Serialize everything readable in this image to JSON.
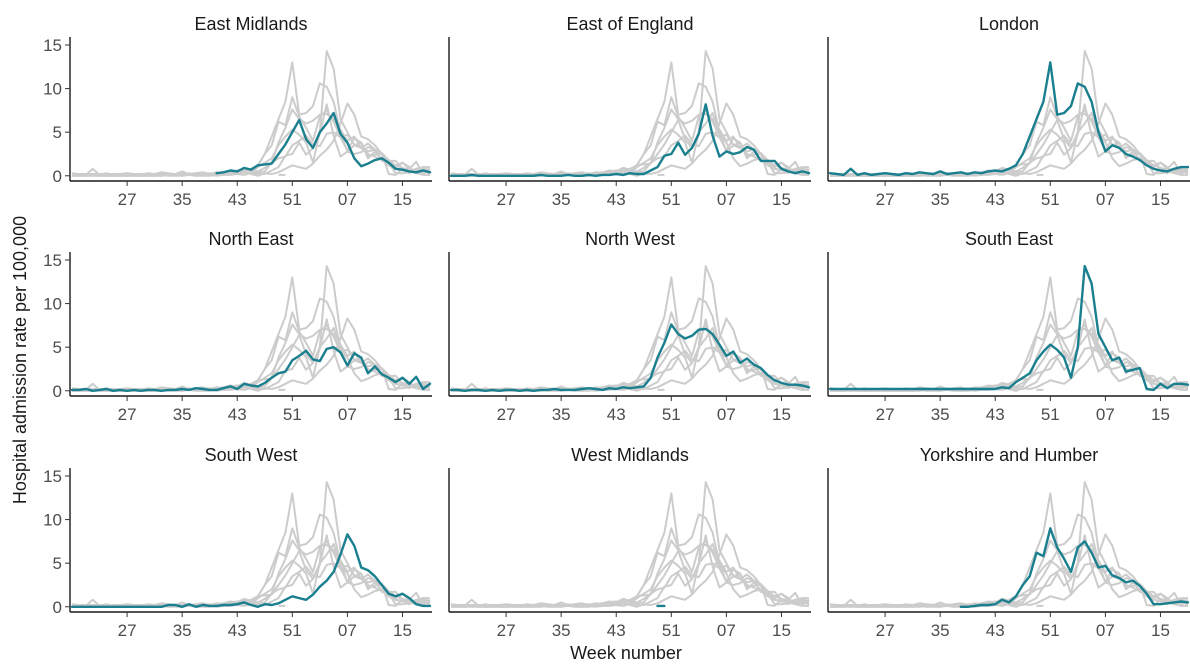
{
  "chart_data": {
    "type": "line",
    "facet_layout": "3x3 small multiples",
    "xlabel": "Week number",
    "ylabel": "Hospital admission rate per 100,000",
    "x": [
      "19",
      "20",
      "21",
      "22",
      "23",
      "24",
      "25",
      "26",
      "27",
      "28",
      "29",
      "30",
      "31",
      "32",
      "33",
      "34",
      "35",
      "36",
      "37",
      "38",
      "39",
      "40",
      "41",
      "42",
      "43",
      "44",
      "45",
      "46",
      "47",
      "48",
      "49",
      "50",
      "51",
      "52",
      "01",
      "02",
      "03",
      "04",
      "05",
      "06",
      "07",
      "08",
      "09",
      "10",
      "11",
      "12",
      "13",
      "14",
      "15",
      "16",
      "17",
      "18",
      "19"
    ],
    "xticks": [
      "27",
      "35",
      "43",
      "51",
      "07",
      "15"
    ],
    "yticks": [
      0,
      5,
      10,
      15
    ],
    "ylim": [
      -0.6,
      15
    ],
    "highlight_color": "#1a7f8e",
    "background_color": "#cccccc",
    "panels": [
      {
        "title": "East Midlands",
        "values": [
          null,
          null,
          null,
          null,
          null,
          null,
          null,
          null,
          null,
          null,
          null,
          null,
          null,
          null,
          null,
          null,
          null,
          null,
          null,
          null,
          null,
          0.3,
          0.4,
          0.6,
          0.5,
          0.9,
          0.7,
          1.2,
          1.3,
          1.4,
          2.5,
          3.6,
          5,
          6.4,
          4.2,
          3.2,
          5,
          6,
          7.2,
          4.8,
          3.8,
          2,
          1.1,
          1.4,
          1.8,
          2,
          1.5,
          0.8,
          0.7,
          0.5,
          0.4,
          0.6,
          0.4
        ]
      },
      {
        "title": "East of England",
        "values": [
          0,
          0,
          0,
          0.1,
          0,
          0,
          0,
          0,
          0,
          0,
          0,
          0,
          0,
          0.1,
          0,
          0,
          0,
          0.1,
          0,
          0,
          0.1,
          0,
          0.1,
          0.1,
          0.2,
          0.1,
          0.3,
          0.2,
          0.2,
          0.6,
          1,
          2.3,
          2.5,
          3.8,
          2.4,
          3.2,
          4.8,
          8.2,
          4.6,
          2.2,
          2.8,
          2.5,
          2.7,
          3.3,
          3,
          1.7,
          1.7,
          1.7,
          0.8,
          0.5,
          0.3,
          0.5,
          0.3
        ]
      },
      {
        "title": "London",
        "values": [
          0.3,
          0.2,
          0.1,
          0.8,
          0.1,
          0.3,
          0.1,
          0.2,
          0.3,
          0.2,
          0.1,
          0.3,
          0.2,
          0.4,
          0.3,
          0.2,
          0.5,
          0.2,
          0.3,
          0.4,
          0.2,
          0.4,
          0.3,
          0.5,
          0.6,
          0.5,
          0.8,
          1.2,
          2.5,
          4.5,
          6.5,
          8.5,
          13,
          7,
          7.2,
          8,
          10.6,
          10.2,
          8.5,
          5,
          2.8,
          3.5,
          3.2,
          2.5,
          2.2,
          1.8,
          1.2,
          0.8,
          0.6,
          0.5,
          0.8,
          1,
          1
        ]
      },
      {
        "title": "North East",
        "values": [
          0.1,
          0.1,
          0.2,
          0,
          0.1,
          0.2,
          0,
          0.1,
          0,
          0.1,
          0,
          0.1,
          0.1,
          0,
          0.1,
          0.1,
          0.2,
          0.1,
          0.3,
          0.2,
          0.1,
          0.1,
          0.3,
          0.5,
          0.2,
          0.8,
          0.6,
          0.5,
          0.9,
          1.5,
          2,
          2.2,
          3.5,
          4,
          4.6,
          3.6,
          3.4,
          4.8,
          5,
          4.4,
          2.9,
          4.3,
          3.8,
          2,
          2.8,
          1.9,
          1.5,
          1,
          1.5,
          0.8,
          1.6,
          0.2,
          0.8
        ]
      },
      {
        "title": "North West",
        "values": [
          0.1,
          0.1,
          0,
          0.1,
          0.1,
          0,
          0.1,
          0,
          0.1,
          0.1,
          0,
          0.1,
          0,
          0.1,
          0.1,
          0.2,
          0.1,
          0.1,
          0.1,
          0.2,
          0.3,
          0.2,
          0.1,
          0.3,
          0.2,
          0.4,
          0.3,
          0.4,
          0.5,
          1.5,
          3.8,
          5.5,
          7.6,
          6.5,
          6,
          6.3,
          7,
          7.1,
          6.5,
          5.3,
          4,
          4.5,
          3.2,
          3.7,
          3,
          2.6,
          1.8,
          1.2,
          0.9,
          0.7,
          0.7,
          0.6,
          0.4
        ]
      },
      {
        "title": "South East",
        "values": [
          0.2,
          0.2,
          0.2,
          0.2,
          0.2,
          0.2,
          0.2,
          0.2,
          0.2,
          0.2,
          0.2,
          0.2,
          0.2,
          0.2,
          0.2,
          0.2,
          0.2,
          0.2,
          0.2,
          0.2,
          0.2,
          0.2,
          0.2,
          0.2,
          0.2,
          0.4,
          0.3,
          1,
          1.5,
          2,
          3.5,
          4.5,
          5.3,
          4.7,
          3.8,
          1.5,
          5,
          14.3,
          12.3,
          6.5,
          5,
          3.5,
          3.8,
          2.2,
          2.4,
          2.6,
          0.2,
          0.1,
          0.8,
          0.3,
          0.8,
          0.8,
          0.7
        ]
      },
      {
        "title": "South West",
        "values": [
          0,
          0,
          0,
          0,
          0,
          0,
          0,
          0,
          0,
          0,
          0,
          0,
          0,
          0,
          0.2,
          0.2,
          0,
          0.3,
          0,
          0.2,
          0.1,
          0.1,
          0.2,
          0.2,
          0.3,
          0.5,
          0.2,
          0,
          0.3,
          0.2,
          0.4,
          0.8,
          1.2,
          1,
          0.8,
          1.4,
          2.3,
          3,
          4,
          6,
          8.3,
          7,
          4.5,
          4.2,
          3.5,
          2.5,
          1.5,
          1.2,
          1.5,
          1,
          0.3,
          0.1,
          0.1
        ]
      },
      {
        "title": "West Midlands",
        "values": [
          null,
          null,
          null,
          null,
          null,
          null,
          null,
          null,
          null,
          null,
          null,
          null,
          null,
          null,
          null,
          null,
          null,
          null,
          null,
          null,
          null,
          null,
          null,
          null,
          null,
          null,
          null,
          null,
          null,
          null,
          0.1,
          0.1,
          null,
          null,
          null,
          null,
          null,
          null,
          null,
          null,
          null,
          null,
          null,
          null,
          null,
          null,
          null,
          null,
          null,
          null,
          null,
          null,
          null
        ]
      },
      {
        "title": "Yorkshire and Humber",
        "values": [
          null,
          null,
          null,
          null,
          null,
          null,
          null,
          null,
          null,
          null,
          null,
          null,
          null,
          null,
          null,
          null,
          null,
          null,
          null,
          0,
          0,
          0.1,
          0.2,
          0.2,
          0.3,
          0.8,
          0.5,
          1.2,
          2.5,
          3.5,
          6.2,
          5.8,
          9,
          6.8,
          5.5,
          4,
          6.8,
          7.5,
          6.2,
          4.5,
          4.7,
          3.6,
          3.3,
          2.8,
          3,
          2.4,
          1.5,
          0.3,
          0.3,
          0.4,
          0.5,
          0.6,
          0.5
        ]
      }
    ]
  }
}
